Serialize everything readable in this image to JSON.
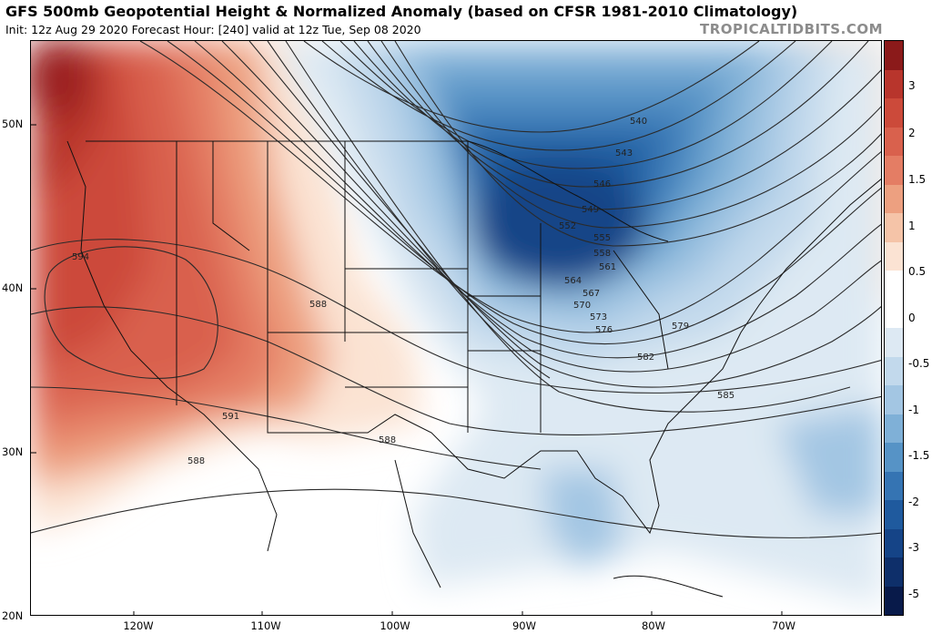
{
  "header": {
    "title": "GFS 500mb Geopotential Height & Normalized Anomaly (based on CFSR 1981-2010 Climatology)",
    "subtitle": "Init: 12z Aug 29 2020   Forecast Hour: [240]   valid at 12z Tue, Sep 08 2020",
    "brand": "TROPICALTIDBITS.COM"
  },
  "axes": {
    "lat_labels": [
      "50N",
      "40N",
      "30N",
      "20N"
    ],
    "lon_labels": [
      "120W",
      "110W",
      "100W",
      "90W",
      "80W",
      "70W"
    ]
  },
  "colorbar": {
    "labels": [
      "3",
      "2",
      "1.5",
      "1",
      "0.5",
      "0",
      "-0.5",
      "-1",
      "-1.5",
      "-2",
      "-3",
      "-5"
    ],
    "colors": [
      "#8b1a1a",
      "#b8352c",
      "#cc4a3a",
      "#d9614d",
      "#e47d64",
      "#eda080",
      "#f5c4a8",
      "#fbe3d3",
      "#ffffff",
      "#ffffff",
      "#dde9f3",
      "#c2d9ec",
      "#a3c6e3",
      "#7fb0d7",
      "#5693c6",
      "#3574b3",
      "#1f5a9e",
      "#154487",
      "#0e2f6a",
      "#081a4a"
    ]
  },
  "contours": {
    "labels": [
      "594",
      "588",
      "591",
      "588",
      "588",
      "540",
      "543",
      "546",
      "549",
      "552",
      "555",
      "558",
      "561",
      "564",
      "567",
      "570",
      "573",
      "576",
      "579",
      "582",
      "585"
    ]
  }
}
